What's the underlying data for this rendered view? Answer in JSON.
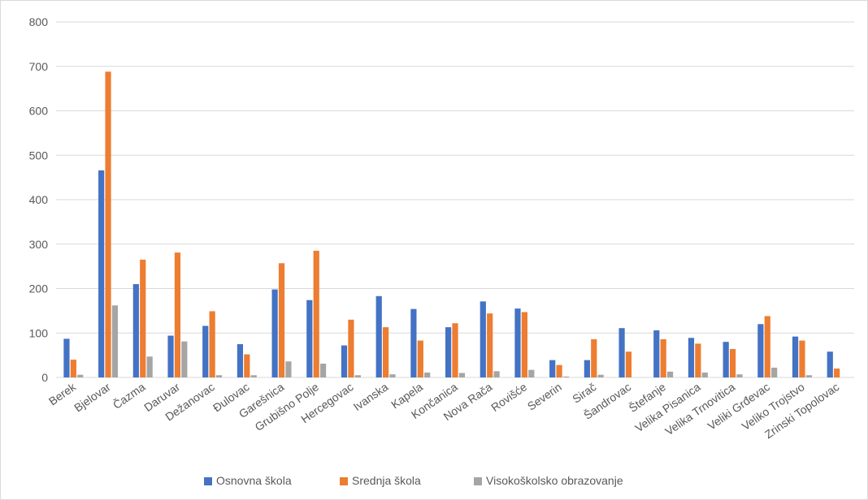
{
  "chart_data": {
    "type": "bar",
    "title": "",
    "xlabel": "",
    "ylabel": "",
    "ylim": [
      0,
      800
    ],
    "yticks": [
      0,
      100,
      200,
      300,
      400,
      500,
      600,
      700,
      800
    ],
    "grid": true,
    "legend_position": "bottom",
    "categories": [
      "Berek",
      "Bjelovar",
      "Čazma",
      "Daruvar",
      "Dežanovac",
      "Đulovac",
      "Garešnica",
      "Grubišno Polje",
      "Hercegovac",
      "Ivanska",
      "Kapela",
      "Končanica",
      "Nova Rača",
      "Rovišće",
      "Severin",
      "Sirač",
      "Šandrovac",
      "Štefanje",
      "Velika Pisanica",
      "Velika Trnovitica",
      "Veliki Grđevac",
      "Veliko Trojstvo",
      "Zrinski Topolovac"
    ],
    "series": [
      {
        "name": "Osnovna škola",
        "color": "#4472c4",
        "values": [
          87,
          466,
          210,
          94,
          116,
          75,
          198,
          174,
          72,
          183,
          154,
          113,
          171,
          155,
          39,
          39,
          111,
          106,
          89,
          80,
          120,
          92,
          58
        ]
      },
      {
        "name": "Srednja škola",
        "color": "#ed7d31",
        "values": [
          40,
          688,
          265,
          281,
          149,
          52,
          257,
          285,
          130,
          113,
          83,
          122,
          144,
          147,
          28,
          86,
          58,
          86,
          76,
          64,
          138,
          83,
          20
        ]
      },
      {
        "name": "Visokoškolsko obrazovanje",
        "color": "#a5a5a5",
        "values": [
          6,
          162,
          47,
          81,
          5,
          5,
          36,
          31,
          5,
          7,
          11,
          10,
          14,
          17,
          2,
          6,
          0,
          13,
          11,
          7,
          22,
          5,
          0
        ]
      }
    ]
  }
}
